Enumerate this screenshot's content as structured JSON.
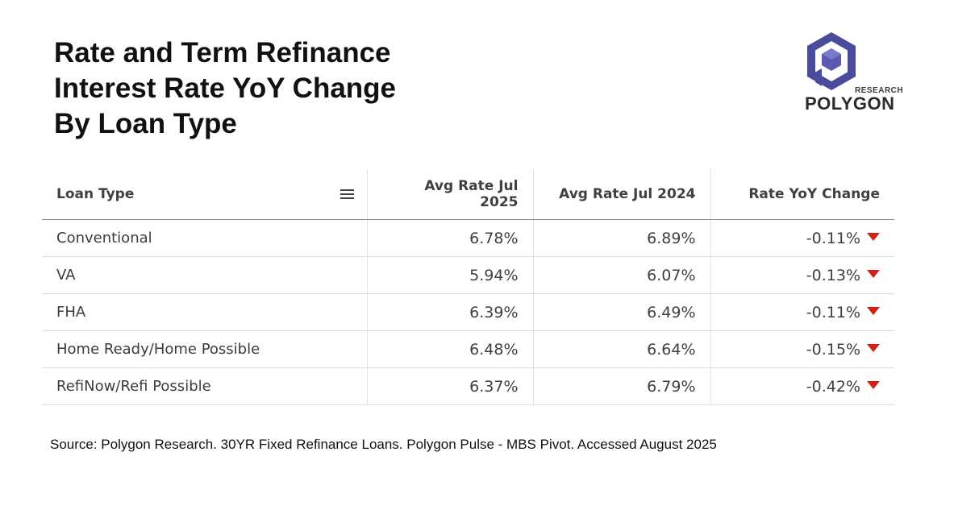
{
  "title_lines": [
    "Rate and Term Refinance",
    "Interest Rate YoY Change",
    "By Loan Type"
  ],
  "logo": {
    "research": "RESEARCH",
    "brand": "POLYGON",
    "icon": "polygon-hexagon-logo",
    "color": "#4a4a9c"
  },
  "chart_data": {
    "type": "table",
    "columns": [
      "Loan Type",
      "Avg Rate Jul 2025",
      "Avg Rate Jul 2024",
      "Rate YoY Change"
    ],
    "rows": [
      [
        "Conventional",
        "6.78%",
        "6.89%",
        "-0.11%"
      ],
      [
        "VA",
        "5.94%",
        "6.07%",
        "-0.13%"
      ],
      [
        "FHA",
        "6.39%",
        "6.49%",
        "-0.11%"
      ],
      [
        "Home Ready/Home Possible",
        "6.48%",
        "6.64%",
        "-0.15%"
      ],
      [
        "RefiNow/Refi Possible",
        "6.37%",
        "6.79%",
        "-0.42%"
      ]
    ],
    "change_indicator": "down-triangle",
    "indicator_color": "#d62013"
  },
  "source": "Source: Polygon Research. 30YR Fixed Refinance Loans. Polygon Pulse - MBS Pivot. Accessed August 2025"
}
